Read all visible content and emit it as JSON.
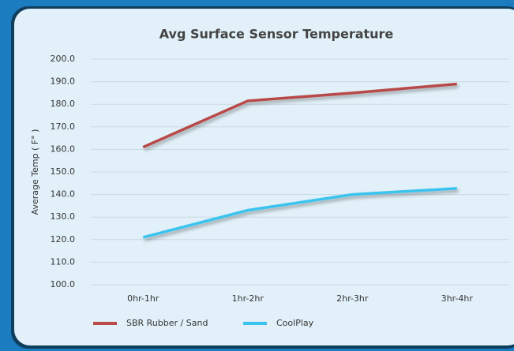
{
  "chart_data": {
    "type": "line",
    "title": "Avg Surface Sensor Temperature",
    "y_label": "Average Temp ( F° )",
    "categories": [
      "0hr-1hr",
      "1hr-2hr",
      "2hr-3hr",
      "3hr-4hr"
    ],
    "series": [
      {
        "name": "SBR Rubber / Sand",
        "color": "#b84a4a",
        "values": [
          161,
          181.5,
          185,
          189
        ]
      },
      {
        "name": "CoolPlay",
        "color": "#3bc3ef",
        "values": [
          121,
          133,
          140,
          142.7
        ]
      }
    ],
    "ylim": [
      100,
      200
    ],
    "yticks": [
      {
        "value": 100,
        "label": "100.0"
      },
      {
        "value": 110,
        "label": "110.0"
      },
      {
        "value": 120,
        "label": "120.0"
      },
      {
        "value": 130,
        "label": "130.0"
      },
      {
        "value": 140,
        "label": "140.0"
      },
      {
        "value": 150,
        "label": "150.0"
      },
      {
        "value": 160,
        "label": "160.0"
      },
      {
        "value": 170,
        "label": "170.0"
      },
      {
        "value": 180,
        "label": "180.0"
      },
      {
        "value": 190,
        "label": "190.0"
      },
      {
        "value": 200,
        "label": "200.0"
      }
    ],
    "grid": true,
    "legend": "bottom"
  }
}
